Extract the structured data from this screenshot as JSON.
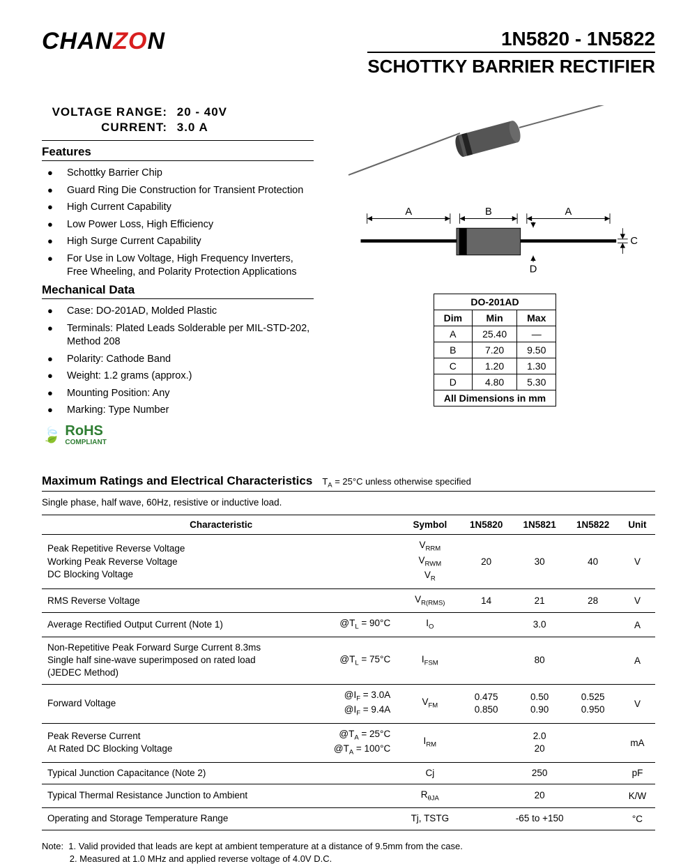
{
  "logo": {
    "p1": "CHAN",
    "p2": "ZO",
    "p3": "N"
  },
  "title": {
    "range": "1N5820 - 1N5822",
    "subtitle": "SCHOTTKY BARRIER RECTIFIER"
  },
  "specs": {
    "voltage_label": "VOLTAGE  RANGE:",
    "voltage_value": "20 - 40V",
    "current_label": "CURRENT:",
    "current_value": "3.0 A"
  },
  "features": {
    "heading": "Features",
    "items": [
      "Schottky Barrier Chip",
      "Guard Ring Die Construction for Transient Protection",
      "High Current Capability",
      "Low Power Loss, High Efficiency",
      "High Surge Current Capability",
      "For Use in Low Voltage, High Frequency Inverters, Free Wheeling, and Polarity Protection Applications"
    ]
  },
  "mechanical": {
    "heading": "Mechanical Data",
    "items": [
      "Case: DO-201AD, Molded Plastic",
      "Terminals: Plated Leads Solderable per MIL-STD-202, Method 208",
      "Polarity: Cathode Band",
      "Weight: 1.2 grams (approx.)",
      "Mounting Position: Any",
      "Marking: Type Number"
    ]
  },
  "rohs": {
    "line1": "RoHS",
    "line2": "COMPLIANT"
  },
  "dim_drawing": {
    "labels": {
      "A": "A",
      "B": "B",
      "C": "C",
      "D": "D"
    },
    "colors": {
      "body": "#555",
      "band": "#000",
      "lead": "#ccc",
      "line": "#000"
    }
  },
  "dim_table": {
    "title": "DO-201AD",
    "cols": [
      "Dim",
      "Min",
      "Max"
    ],
    "rows": [
      [
        "A",
        "25.40",
        "—"
      ],
      [
        "B",
        "7.20",
        "9.50"
      ],
      [
        "C",
        "1.20",
        "1.30"
      ],
      [
        "D",
        "4.80",
        "5.30"
      ]
    ],
    "footer": "All Dimensions in mm"
  },
  "ratings": {
    "heading": "Maximum Ratings and Electrical Characteristics",
    "condition": "TA = 25°C unless otherwise specified",
    "note": "Single phase, half wave, 60Hz, resistive or inductive load.",
    "columns": [
      "Characteristic",
      "Symbol",
      "1N5820",
      "1N5821",
      "1N5822",
      "Unit"
    ],
    "rows": [
      {
        "char": "Peak Repetitive Reverse Voltage\nWorking Peak Reverse Voltage\nDC Blocking Voltage",
        "cond": "",
        "symbol": "VRRM\nVRWM\nVR",
        "v": [
          "20",
          "30",
          "40"
        ],
        "span": false,
        "unit": "V"
      },
      {
        "char": "RMS Reverse Voltage",
        "cond": "",
        "symbol": "VR(RMS)",
        "v": [
          "14",
          "21",
          "28"
        ],
        "span": false,
        "unit": "V"
      },
      {
        "char": "Average Rectified Output Current   (Note 1)",
        "cond": "@TL = 90°C",
        "symbol": "IO",
        "v": [
          "3.0"
        ],
        "span": true,
        "unit": "A"
      },
      {
        "char": "Non-Repetitive Peak Forward Surge Current 8.3ms\nSingle half sine-wave superimposed on rated load\n(JEDEC Method)",
        "cond": "@TL = 75°C",
        "symbol": "IFSM",
        "v": [
          "80"
        ],
        "span": true,
        "unit": "A"
      },
      {
        "char": "Forward Voltage",
        "cond": "@IF = 3.0A\n@IF = 9.4A",
        "symbol": "VFM",
        "v": [
          "0.475\n0.850",
          "0.50\n0.90",
          "0.525\n0.950"
        ],
        "span": false,
        "unit": "V"
      },
      {
        "char": "Peak Reverse Current\nAt Rated DC Blocking Voltage",
        "cond": "@TA = 25°C\n@TA = 100°C",
        "symbol": "IRM",
        "v": [
          "2.0\n20"
        ],
        "span": true,
        "unit": "mA"
      },
      {
        "char": "Typical Junction Capacitance (Note 2)",
        "cond": "",
        "symbol": "Cj",
        "v": [
          "250"
        ],
        "span": true,
        "unit": "pF"
      },
      {
        "char": "Typical Thermal Resistance Junction to Ambient",
        "cond": "",
        "symbol": "RθJA",
        "v": [
          "20"
        ],
        "span": true,
        "unit": "K/W"
      },
      {
        "char": "Operating and Storage Temperature Range",
        "cond": "",
        "symbol": "Tj, TSTG",
        "v": [
          "-65 to +150"
        ],
        "span": true,
        "unit": "°C"
      }
    ]
  },
  "footnotes": [
    "Note:  1. Valid provided that leads are kept at ambient temperature at a distance of 9.5mm from the case.",
    "           2. Measured at 1.0 MHz and applied reverse voltage of 4.0V D.C."
  ]
}
